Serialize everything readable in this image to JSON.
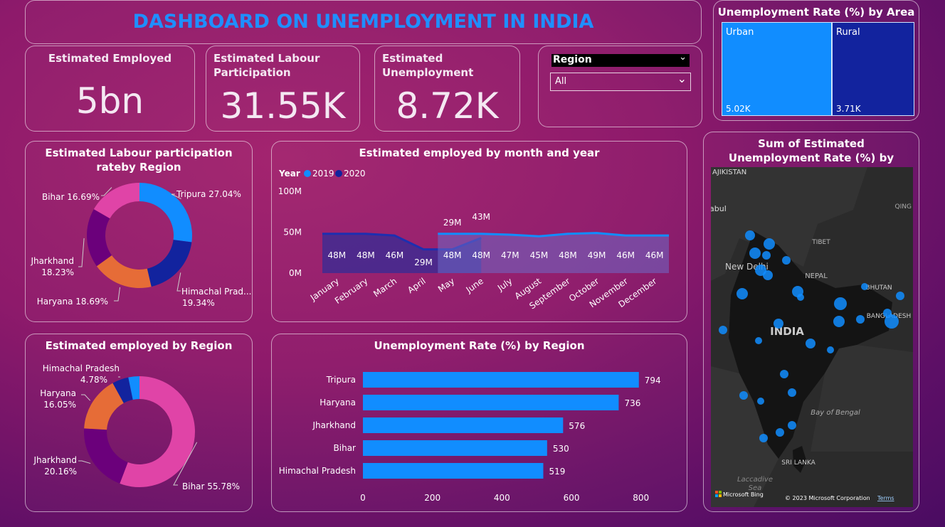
{
  "title": "DASHBOARD ON UNEMPLOYMENT IN INDIA",
  "kpis": {
    "employed": {
      "label": "Estimated Employed",
      "value": "5bn"
    },
    "labour": {
      "label": "Estimated Labour Participation",
      "value": "31.55K"
    },
    "unemployment": {
      "label": "Estimated Unemployment",
      "value": "8.72K"
    }
  },
  "slicer": {
    "label": "Region",
    "value": "All"
  },
  "colors": {
    "blue": "#118dff",
    "navy": "#12239e",
    "orange": "#e66c37",
    "purple": "#6b007b",
    "pink": "#e044a7",
    "title": "#1f8fff"
  },
  "chart_data": [
    {
      "id": "labour_by_region",
      "type": "pie",
      "title": "Estimated Labour participation rateby Region",
      "slices": [
        {
          "name": "Tripura",
          "value": 27.04,
          "label": "Tripura 27.04%",
          "color": "#118dff"
        },
        {
          "name": "Himachal Pradesh",
          "value": 19.34,
          "label": "Himachal Prad...",
          "pct": "19.34%",
          "color": "#12239e"
        },
        {
          "name": "Haryana",
          "value": 18.69,
          "label": "Haryana 18.69%",
          "color": "#e66c37"
        },
        {
          "name": "Jharkhand",
          "value": 18.23,
          "label": "Jharkhand",
          "pct": "18.23%",
          "color": "#6b007b"
        },
        {
          "name": "Bihar",
          "value": 16.69,
          "label": "Bihar 16.69%",
          "color": "#e044a7"
        }
      ]
    },
    {
      "id": "employed_by_month",
      "type": "area",
      "title": "Estimated employed by month and year",
      "legend_title": "Year",
      "series_names": [
        "2019",
        "2020"
      ],
      "categories": [
        "January",
        "February",
        "March",
        "April",
        "May",
        "June",
        "July",
        "August",
        "September",
        "October",
        "November",
        "December"
      ],
      "series": [
        {
          "name": "2019",
          "values": [
            null,
            null,
            null,
            null,
            48,
            48,
            47,
            45,
            48,
            49,
            46,
            46
          ],
          "labels": [
            "",
            "",
            "",
            "",
            "48M",
            "48M",
            "47M",
            "45M",
            "48M",
            "49M",
            "46M",
            "46M"
          ]
        },
        {
          "name": "2020",
          "values": [
            48,
            48,
            46,
            29,
            29,
            43,
            null,
            null,
            null,
            null,
            null,
            null
          ],
          "labels": [
            "48M",
            "48M",
            "46M",
            "29M",
            "29M",
            "43M",
            "",
            "",
            "",
            "",
            "",
            ""
          ]
        }
      ],
      "yticks": [
        "0M",
        "50M",
        "100M"
      ],
      "ylim": [
        0,
        100
      ]
    },
    {
      "id": "employed_by_region",
      "type": "pie",
      "title": "Estimated employed by Region",
      "slices": [
        {
          "name": "Bihar",
          "value": 55.78,
          "label": "Bihar 55.78%",
          "color": "#e044a7"
        },
        {
          "name": "Jharkhand",
          "value": 20.16,
          "label": "Jharkhand",
          "pct": "20.16%",
          "color": "#6b007b"
        },
        {
          "name": "Haryana",
          "value": 16.05,
          "label": "Haryana",
          "pct": "16.05%",
          "color": "#e66c37"
        },
        {
          "name": "Himachal Pradesh",
          "value": 4.78,
          "label": "Himachal Pradesh",
          "pct": "4.78%",
          "color": "#12239e"
        },
        {
          "name": "Tripura",
          "value": 3.23,
          "label": "",
          "color": "#118dff"
        }
      ]
    },
    {
      "id": "unemp_by_region",
      "type": "bar",
      "title": "Unemployment Rate (%) by Region",
      "categories": [
        "Tripura",
        "Haryana",
        "Jharkhand",
        "Bihar",
        "Himachal Pradesh"
      ],
      "values": [
        794,
        736,
        576,
        530,
        519
      ],
      "xticks": [
        "0",
        "200",
        "400",
        "600",
        "800"
      ],
      "xlim": [
        0,
        860
      ]
    },
    {
      "id": "unemp_by_area",
      "type": "treemap",
      "title": "Unemployment Rate (%) by Area",
      "items": [
        {
          "name": "Urban",
          "value": 5.02,
          "label": "5.02K"
        },
        {
          "name": "Rural",
          "value": 3.71,
          "label": "3.71K"
        }
      ]
    }
  ],
  "map": {
    "title": "Sum of Estimated Unemployment Rate (%) by Region",
    "labels": [
      "AJIKISTAN",
      "abul",
      "QING",
      "TIBET",
      "New Delhi",
      "NEPAL",
      "BHUTAN",
      "BANGLADESH",
      "INDIA",
      "Bay of Bengal",
      "SRI LANKA",
      "Laccadive",
      "Sea"
    ],
    "attribution": "© 2023 Microsoft Corporation",
    "terms": "Terms",
    "brand": "Microsoft Bing"
  }
}
